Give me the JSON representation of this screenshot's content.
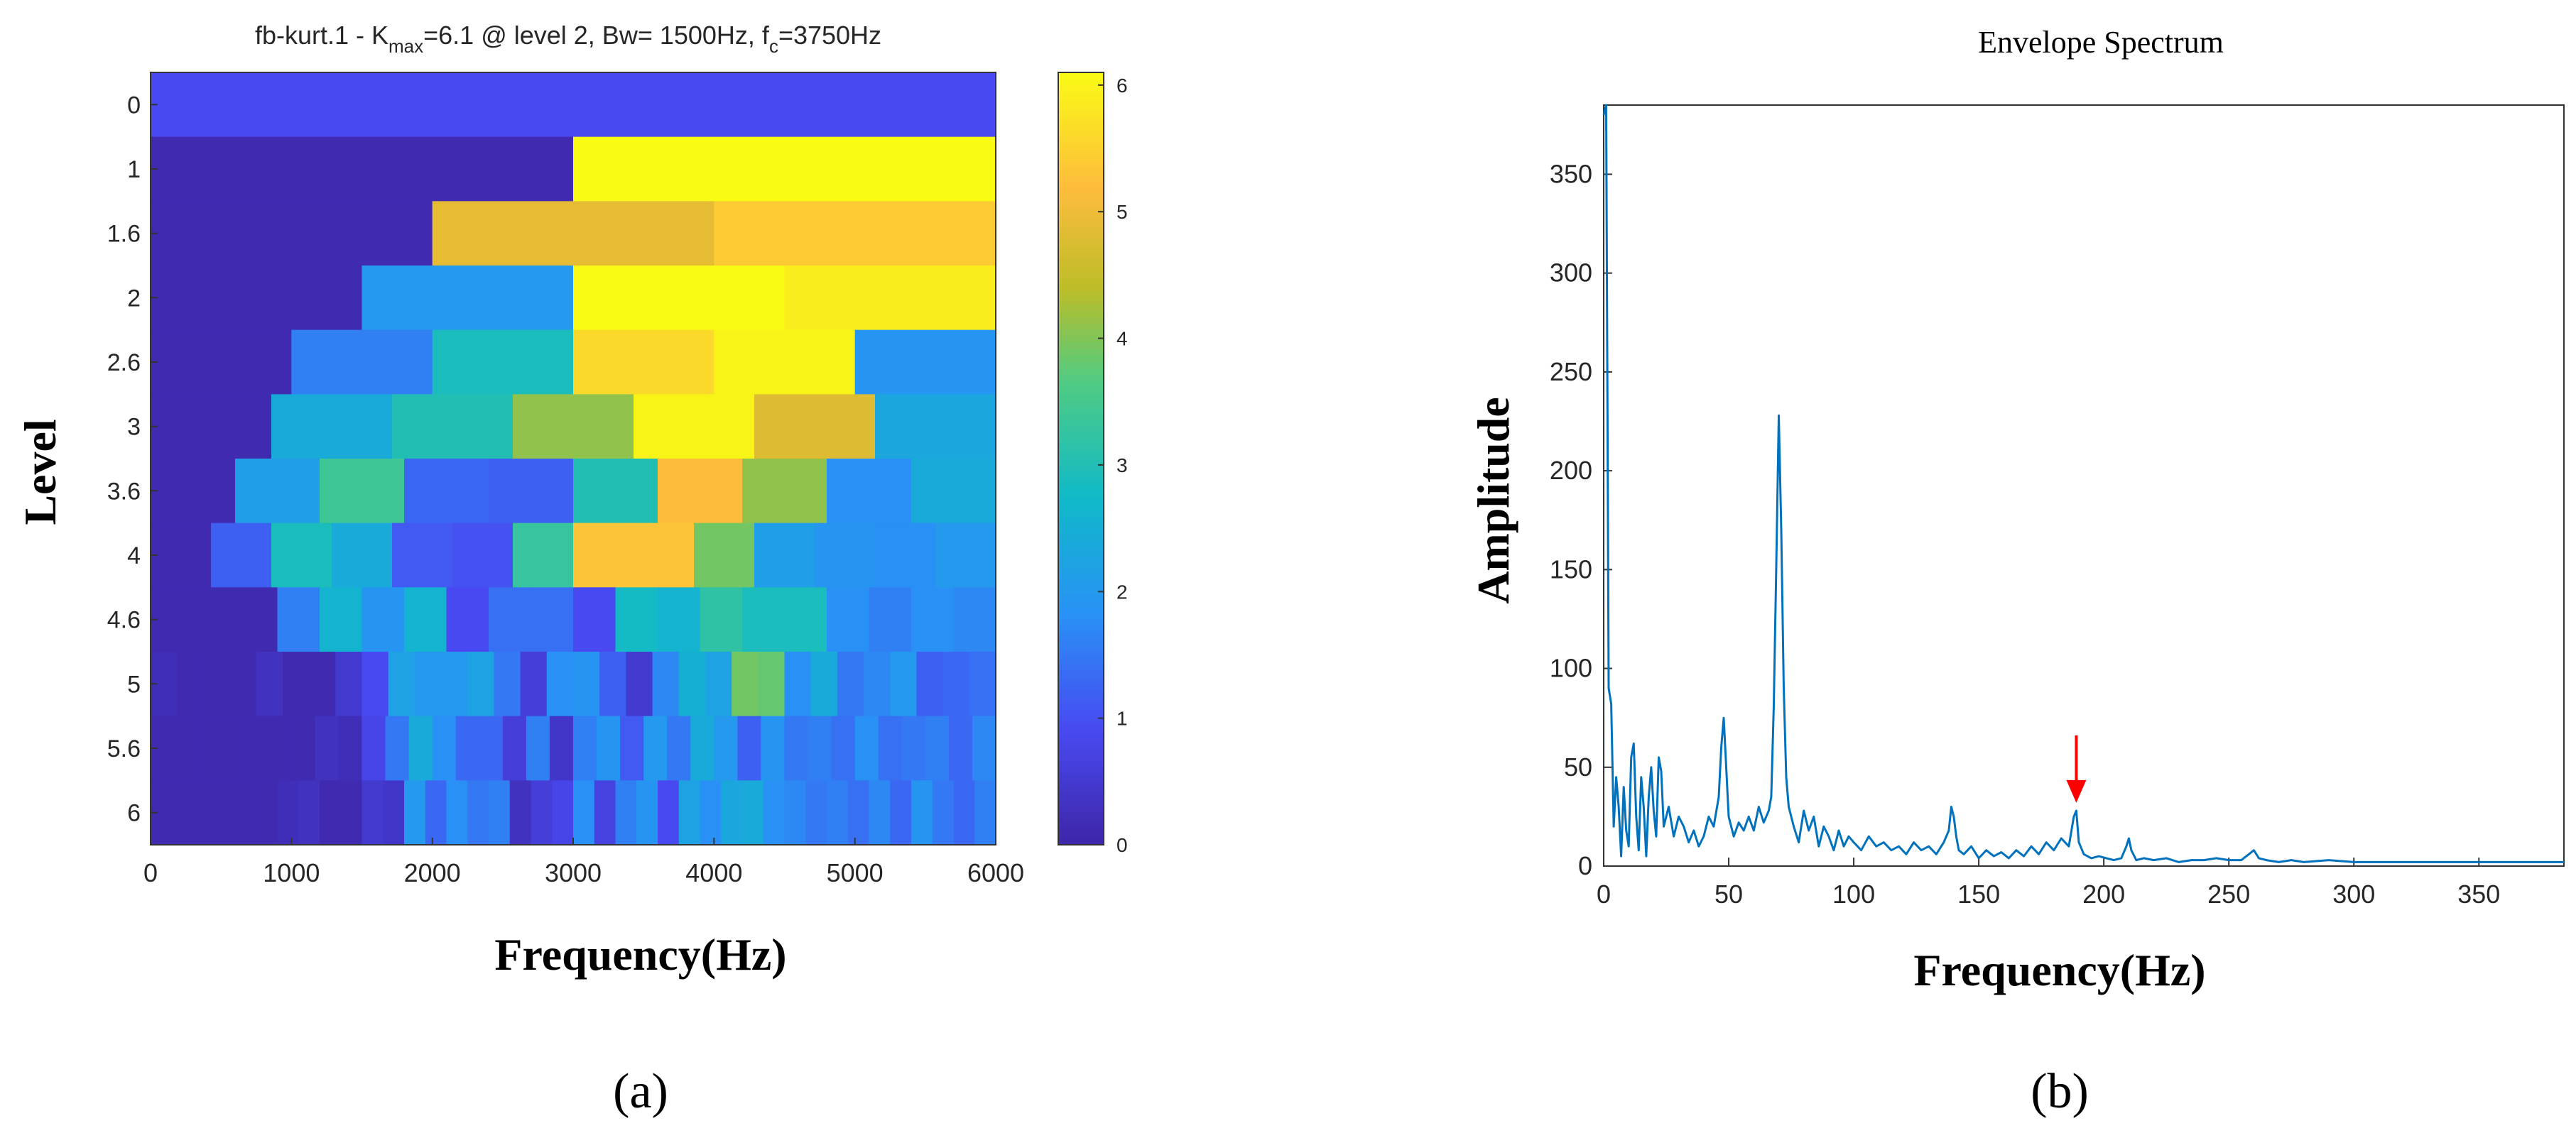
{
  "figure": {
    "panel_a_label": "(a)",
    "panel_b_label": "(b)"
  },
  "chart_data": [
    {
      "type": "heatmap",
      "title": {
        "prefix": "fb-kurt.1 - K",
        "kmax_sub": "max",
        "middle": "=6.1 @ level 2, Bw= 1500Hz, f",
        "fc_sub": "c",
        "suffix": "=3750Hz"
      },
      "xlabel": "Frequency(Hz)",
      "ylabel": "Level",
      "xlim": [
        0,
        6000
      ],
      "x_ticks": [
        0,
        1000,
        2000,
        3000,
        4000,
        5000,
        6000
      ],
      "y_tick_labels": [
        "0",
        "1",
        "1.6",
        "2",
        "2.6",
        "3",
        "3.6",
        "4",
        "4.6",
        "5",
        "5.6",
        "6"
      ],
      "colormap": "parula",
      "colorbar": {
        "ticks": [
          0,
          1,
          2,
          3,
          4,
          5,
          6
        ],
        "range": [
          0,
          6.1
        ]
      },
      "rows": [
        {
          "level": "0",
          "values": [
            0.9
          ]
        },
        {
          "level": "1",
          "values": [
            0.1,
            6.1
          ]
        },
        {
          "level": "1.6",
          "values": [
            0.1,
            4.9,
            5.4
          ]
        },
        {
          "level": "2",
          "values": [
            0.1,
            2.0,
            6.1,
            5.9
          ]
        },
        {
          "level": "2.6",
          "values": [
            0.1,
            1.6,
            2.9,
            5.6,
            6.0,
            1.9
          ]
        },
        {
          "level": "3",
          "values": [
            0.1,
            2.4,
            3.0,
            4.1,
            6.0,
            4.8,
            2.3
          ]
        },
        {
          "level": "3.6",
          "values": [
            0.1,
            2.1,
            3.4,
            1.3,
            1.2,
            3.0,
            5.2,
            4.1,
            1.8,
            2.4
          ]
        },
        {
          "level": "4",
          "values": [
            0.1,
            1.2,
            2.9,
            2.4,
            1.1,
            1.0,
            3.3,
            5.3,
            5.3,
            3.9,
            2.1,
            1.9,
            1.8,
            2.0
          ]
        },
        {
          "level": "4.6",
          "values": [
            0.1,
            0.1,
            0.1,
            1.6,
            2.6,
            1.9,
            2.6,
            0.9,
            1.4,
            1.4,
            0.9,
            2.8,
            2.6,
            3.2,
            2.9,
            2.9,
            1.8,
            1.6,
            1.8,
            1.7
          ]
        },
        {
          "level": "5",
          "values": [
            0.2,
            0.1,
            0.1,
            0.1,
            0.3,
            0.1,
            0.1,
            0.5,
            0.9,
            2.2,
            2.0,
            2.0,
            2.2,
            1.5,
            0.6,
            1.8,
            1.9,
            1.2,
            0.5,
            1.7,
            2.5,
            2.2,
            3.9,
            3.8,
            1.8,
            2.4,
            1.5,
            1.7,
            2.0,
            1.2,
            1.3,
            1.4
          ]
        },
        {
          "level": "5.6",
          "values": [
            0.1,
            0.1,
            0.1,
            0.1,
            0.1,
            0.1,
            0.1,
            0.3,
            0.2,
            0.8,
            1.5,
            2.4,
            1.8,
            1.3,
            1.3,
            0.6,
            1.6,
            0.4,
            1.6,
            1.9,
            1.1,
            2.0,
            1.5,
            2.4,
            2.0,
            1.2,
            1.9,
            1.5,
            1.6,
            1.4,
            1.8,
            1.4,
            1.5,
            1.6,
            1.3,
            1.7
          ]
        },
        {
          "level": "6",
          "values": [
            0.1,
            0.1,
            0.1,
            0.1,
            0.1,
            0.1,
            0.2,
            0.3,
            0.1,
            0.1,
            0.5,
            0.4,
            2.0,
            1.3,
            1.8,
            1.5,
            1.6,
            0.3,
            0.6,
            0.8,
            1.8,
            0.7,
            1.6,
            1.9,
            0.9,
            2.2,
            1.8,
            2.3,
            2.4,
            1.8,
            1.7,
            1.5,
            1.6,
            1.4,
            1.7,
            1.3,
            1.9,
            1.5,
            1.3,
            1.6
          ]
        }
      ]
    },
    {
      "type": "line",
      "title": "Envelope Spectrum",
      "xlabel": "Frequency(Hz)",
      "ylabel": "Amplitude",
      "xlim": [
        0,
        384
      ],
      "ylim": [
        0,
        385
      ],
      "x_ticks": [
        0,
        50,
        100,
        150,
        200,
        250,
        300,
        350
      ],
      "y_ticks": [
        0,
        50,
        100,
        150,
        200,
        250,
        300,
        350
      ],
      "line_color": "#0072bd",
      "annotation": {
        "type": "arrow",
        "color": "#ff0000",
        "x": 189,
        "y": 28
      },
      "x": [
        0,
        1,
        2,
        3,
        4,
        5,
        6,
        7,
        8,
        9,
        10,
        11,
        12,
        13,
        14,
        15,
        16,
        17,
        18,
        19,
        20,
        21,
        22,
        23,
        24,
        26,
        28,
        30,
        32,
        34,
        36,
        38,
        40,
        42,
        44,
        46,
        47,
        48,
        49,
        50,
        52,
        54,
        56,
        58,
        60,
        62,
        64,
        66,
        67,
        68,
        69,
        70,
        71,
        72,
        73,
        74,
        76,
        78,
        80,
        82,
        84,
        86,
        88,
        90,
        92,
        94,
        96,
        98,
        100,
        103,
        106,
        109,
        112,
        115,
        118,
        121,
        124,
        127,
        130,
        133,
        136,
        138,
        139,
        140,
        141,
        142,
        144,
        147,
        150,
        153,
        156,
        159,
        162,
        165,
        168,
        171,
        174,
        177,
        180,
        183,
        186,
        188,
        189,
        190,
        192,
        195,
        198,
        201,
        204,
        207,
        209,
        210,
        211,
        213,
        216,
        220,
        225,
        230,
        235,
        240,
        245,
        250,
        255,
        258,
        260,
        262,
        265,
        270,
        275,
        280,
        290,
        300,
        310,
        320,
        330,
        340,
        350,
        360,
        370,
        384
      ],
      "y": [
        380,
        385,
        90,
        82,
        20,
        45,
        30,
        5,
        40,
        18,
        10,
        55,
        62,
        25,
        8,
        45,
        30,
        5,
        35,
        50,
        28,
        15,
        55,
        48,
        20,
        30,
        15,
        25,
        20,
        12,
        18,
        10,
        15,
        25,
        20,
        35,
        60,
        75,
        50,
        25,
        15,
        22,
        18,
        25,
        18,
        30,
        22,
        28,
        35,
        80,
        150,
        228,
        170,
        90,
        45,
        30,
        20,
        12,
        28,
        18,
        25,
        10,
        20,
        15,
        8,
        18,
        10,
        15,
        12,
        8,
        15,
        10,
        12,
        8,
        10,
        6,
        12,
        8,
        10,
        6,
        12,
        18,
        30,
        25,
        15,
        8,
        6,
        10,
        4,
        8,
        5,
        7,
        4,
        8,
        5,
        10,
        6,
        12,
        8,
        14,
        10,
        25,
        28,
        12,
        6,
        4,
        5,
        4,
        3,
        4,
        10,
        14,
        8,
        3,
        4,
        3,
        4,
        2,
        3,
        3,
        4,
        3,
        3,
        6,
        8,
        4,
        3,
        2,
        3,
        2,
        3,
        2,
        2,
        2,
        2,
        2,
        2,
        2,
        2,
        2
      ]
    }
  ]
}
